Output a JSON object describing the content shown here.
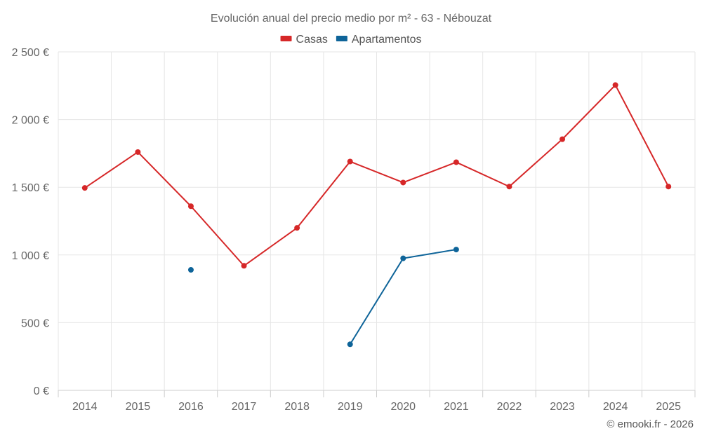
{
  "chart_data": {
    "type": "line",
    "title": "Evolución anual del precio medio por m² - 63 - Nébouzat",
    "categories": [
      "2014",
      "2015",
      "2016",
      "2017",
      "2018",
      "2019",
      "2020",
      "2021",
      "2022",
      "2023",
      "2024",
      "2025"
    ],
    "ylim": [
      0,
      2500
    ],
    "yticks": [
      0,
      500,
      1000,
      1500,
      2000,
      2500
    ],
    "ytick_labels": [
      "0 €",
      "500 €",
      "1 000 €",
      "1 500 €",
      "2 000 €",
      "2 500 €"
    ],
    "grid": true,
    "legend_position": "top-center",
    "series": [
      {
        "name": "Casas",
        "color": "#d62728",
        "values": [
          1495,
          1760,
          1360,
          920,
          1200,
          1690,
          1535,
          1685,
          1505,
          1855,
          2255,
          1505
        ]
      },
      {
        "name": "Apartamentos",
        "color": "#0e6499",
        "values": [
          null,
          null,
          890,
          null,
          null,
          340,
          975,
          1040,
          null,
          null,
          null,
          null
        ]
      }
    ]
  },
  "credit": "© emooki.fr - 2026"
}
